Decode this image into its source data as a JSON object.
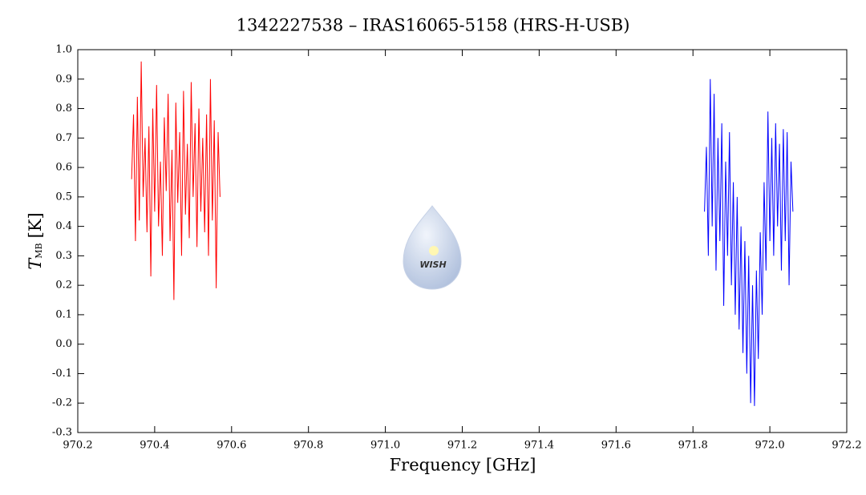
{
  "chart_data": {
    "type": "line",
    "title": "1342227538 – IRAS16065-5158 (HRS-H-USB)",
    "xlabel": "Frequency [GHz]",
    "ylabel_symbol": "T",
    "ylabel_subscript": "MB",
    "ylabel_unit": "[K]",
    "watermark": "WISH",
    "xlim": [
      970.2,
      972.2
    ],
    "ylim": [
      -0.3,
      1.0
    ],
    "xticks": [
      970.2,
      970.4,
      970.6,
      970.8,
      {
        "value": 971,
        "label": "971.0"
      },
      971.2,
      971.4,
      971.6,
      971.8,
      {
        "value": 972,
        "label": "972.0"
      },
      972.2
    ],
    "yticks": [
      -0.3,
      -0.2,
      -0.1,
      {
        "value": 0,
        "label": "0.0"
      },
      0.1,
      0.2,
      0.3,
      0.4,
      0.5,
      0.6,
      0.7,
      0.8,
      0.9,
      {
        "value": 1,
        "label": "1.0"
      }
    ],
    "series": [
      {
        "color": "#ff0000",
        "x": [
          970.34,
          970.345,
          970.35,
          970.355,
          970.36,
          970.365,
          970.37,
          970.375,
          970.38,
          970.385,
          970.39,
          970.395,
          970.4,
          970.405,
          970.41,
          970.415,
          970.42,
          970.425,
          970.43,
          970.435,
          970.44,
          970.445,
          970.45,
          970.455,
          970.46,
          970.465,
          970.47,
          970.475,
          970.48,
          970.485,
          970.49,
          970.495,
          970.5,
          970.505,
          970.51,
          970.515,
          970.52,
          970.525,
          970.53,
          970.535,
          970.54,
          970.545,
          970.55,
          970.555,
          970.56,
          970.565,
          970.57
        ],
        "values": [
          0.56,
          0.78,
          0.35,
          0.84,
          0.42,
          0.96,
          0.5,
          0.7,
          0.38,
          0.74,
          0.23,
          0.8,
          0.45,
          0.88,
          0.4,
          0.62,
          0.3,
          0.77,
          0.52,
          0.85,
          0.35,
          0.66,
          0.15,
          0.82,
          0.48,
          0.72,
          0.3,
          0.86,
          0.44,
          0.68,
          0.36,
          0.89,
          0.5,
          0.75,
          0.33,
          0.8,
          0.45,
          0.7,
          0.38,
          0.78,
          0.3,
          0.9,
          0.42,
          0.76,
          0.19,
          0.72,
          0.5
        ]
      },
      {
        "color": "#0000ff",
        "x": [
          971.83,
          971.835,
          971.84,
          971.845,
          971.85,
          971.855,
          971.86,
          971.865,
          971.87,
          971.875,
          971.88,
          971.885,
          971.89,
          971.895,
          971.9,
          971.905,
          971.91,
          971.915,
          971.92,
          971.925,
          971.93,
          971.935,
          971.94,
          971.945,
          971.95,
          971.955,
          971.96,
          971.965,
          971.97,
          971.975,
          971.98,
          971.985,
          971.99,
          971.995,
          972.0,
          972.005,
          972.01,
          972.015,
          972.02,
          972.025,
          972.03,
          972.035,
          972.04,
          972.045,
          972.05,
          972.055,
          972.06
        ],
        "values": [
          0.45,
          0.67,
          0.3,
          0.9,
          0.4,
          0.85,
          0.25,
          0.7,
          0.35,
          0.75,
          0.13,
          0.62,
          0.3,
          0.72,
          0.2,
          0.55,
          0.1,
          0.5,
          0.05,
          0.4,
          -0.03,
          0.35,
          -0.1,
          0.3,
          -0.2,
          0.2,
          -0.21,
          0.25,
          -0.05,
          0.38,
          0.1,
          0.55,
          0.25,
          0.79,
          0.35,
          0.7,
          0.3,
          0.75,
          0.4,
          0.68,
          0.25,
          0.73,
          0.35,
          0.72,
          0.2,
          0.62,
          0.45
        ]
      }
    ]
  }
}
